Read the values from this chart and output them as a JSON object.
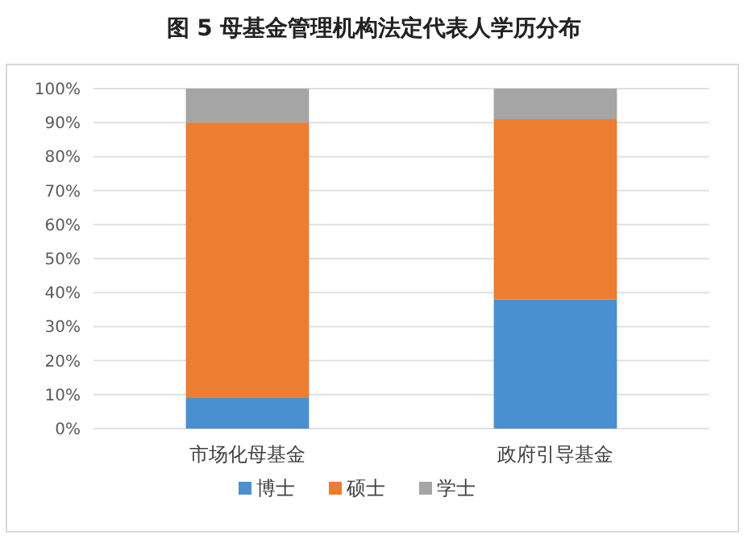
{
  "chart_data": {
    "type": "bar",
    "title": "图 5  母基金管理机构法定代表人学历分布",
    "categories": [
      "市场化母基金",
      "政府引导基金"
    ],
    "stacked": true,
    "series": [
      {
        "name": "博士",
        "color": "#4a90d0",
        "values": [
          9,
          38
        ]
      },
      {
        "name": "硕士",
        "color": "#ed7d31",
        "values": [
          81,
          53
        ]
      },
      {
        "name": "学士",
        "color": "#a5a5a5",
        "values": [
          10,
          9
        ]
      }
    ],
    "ylim": [
      0,
      100
    ],
    "yticks": [
      {
        "value": 0,
        "label": "0%"
      },
      {
        "value": 10,
        "label": "10%"
      },
      {
        "value": 20,
        "label": "20%"
      },
      {
        "value": 30,
        "label": "30%"
      },
      {
        "value": 40,
        "label": "40%"
      },
      {
        "value": 50,
        "label": "50%"
      },
      {
        "value": 60,
        "label": "60%"
      },
      {
        "value": 70,
        "label": "70%"
      },
      {
        "value": 80,
        "label": "80%"
      },
      {
        "value": 90,
        "label": "90%"
      },
      {
        "value": 100,
        "label": "100%"
      }
    ],
    "grid": "y",
    "legend": "bottom"
  }
}
